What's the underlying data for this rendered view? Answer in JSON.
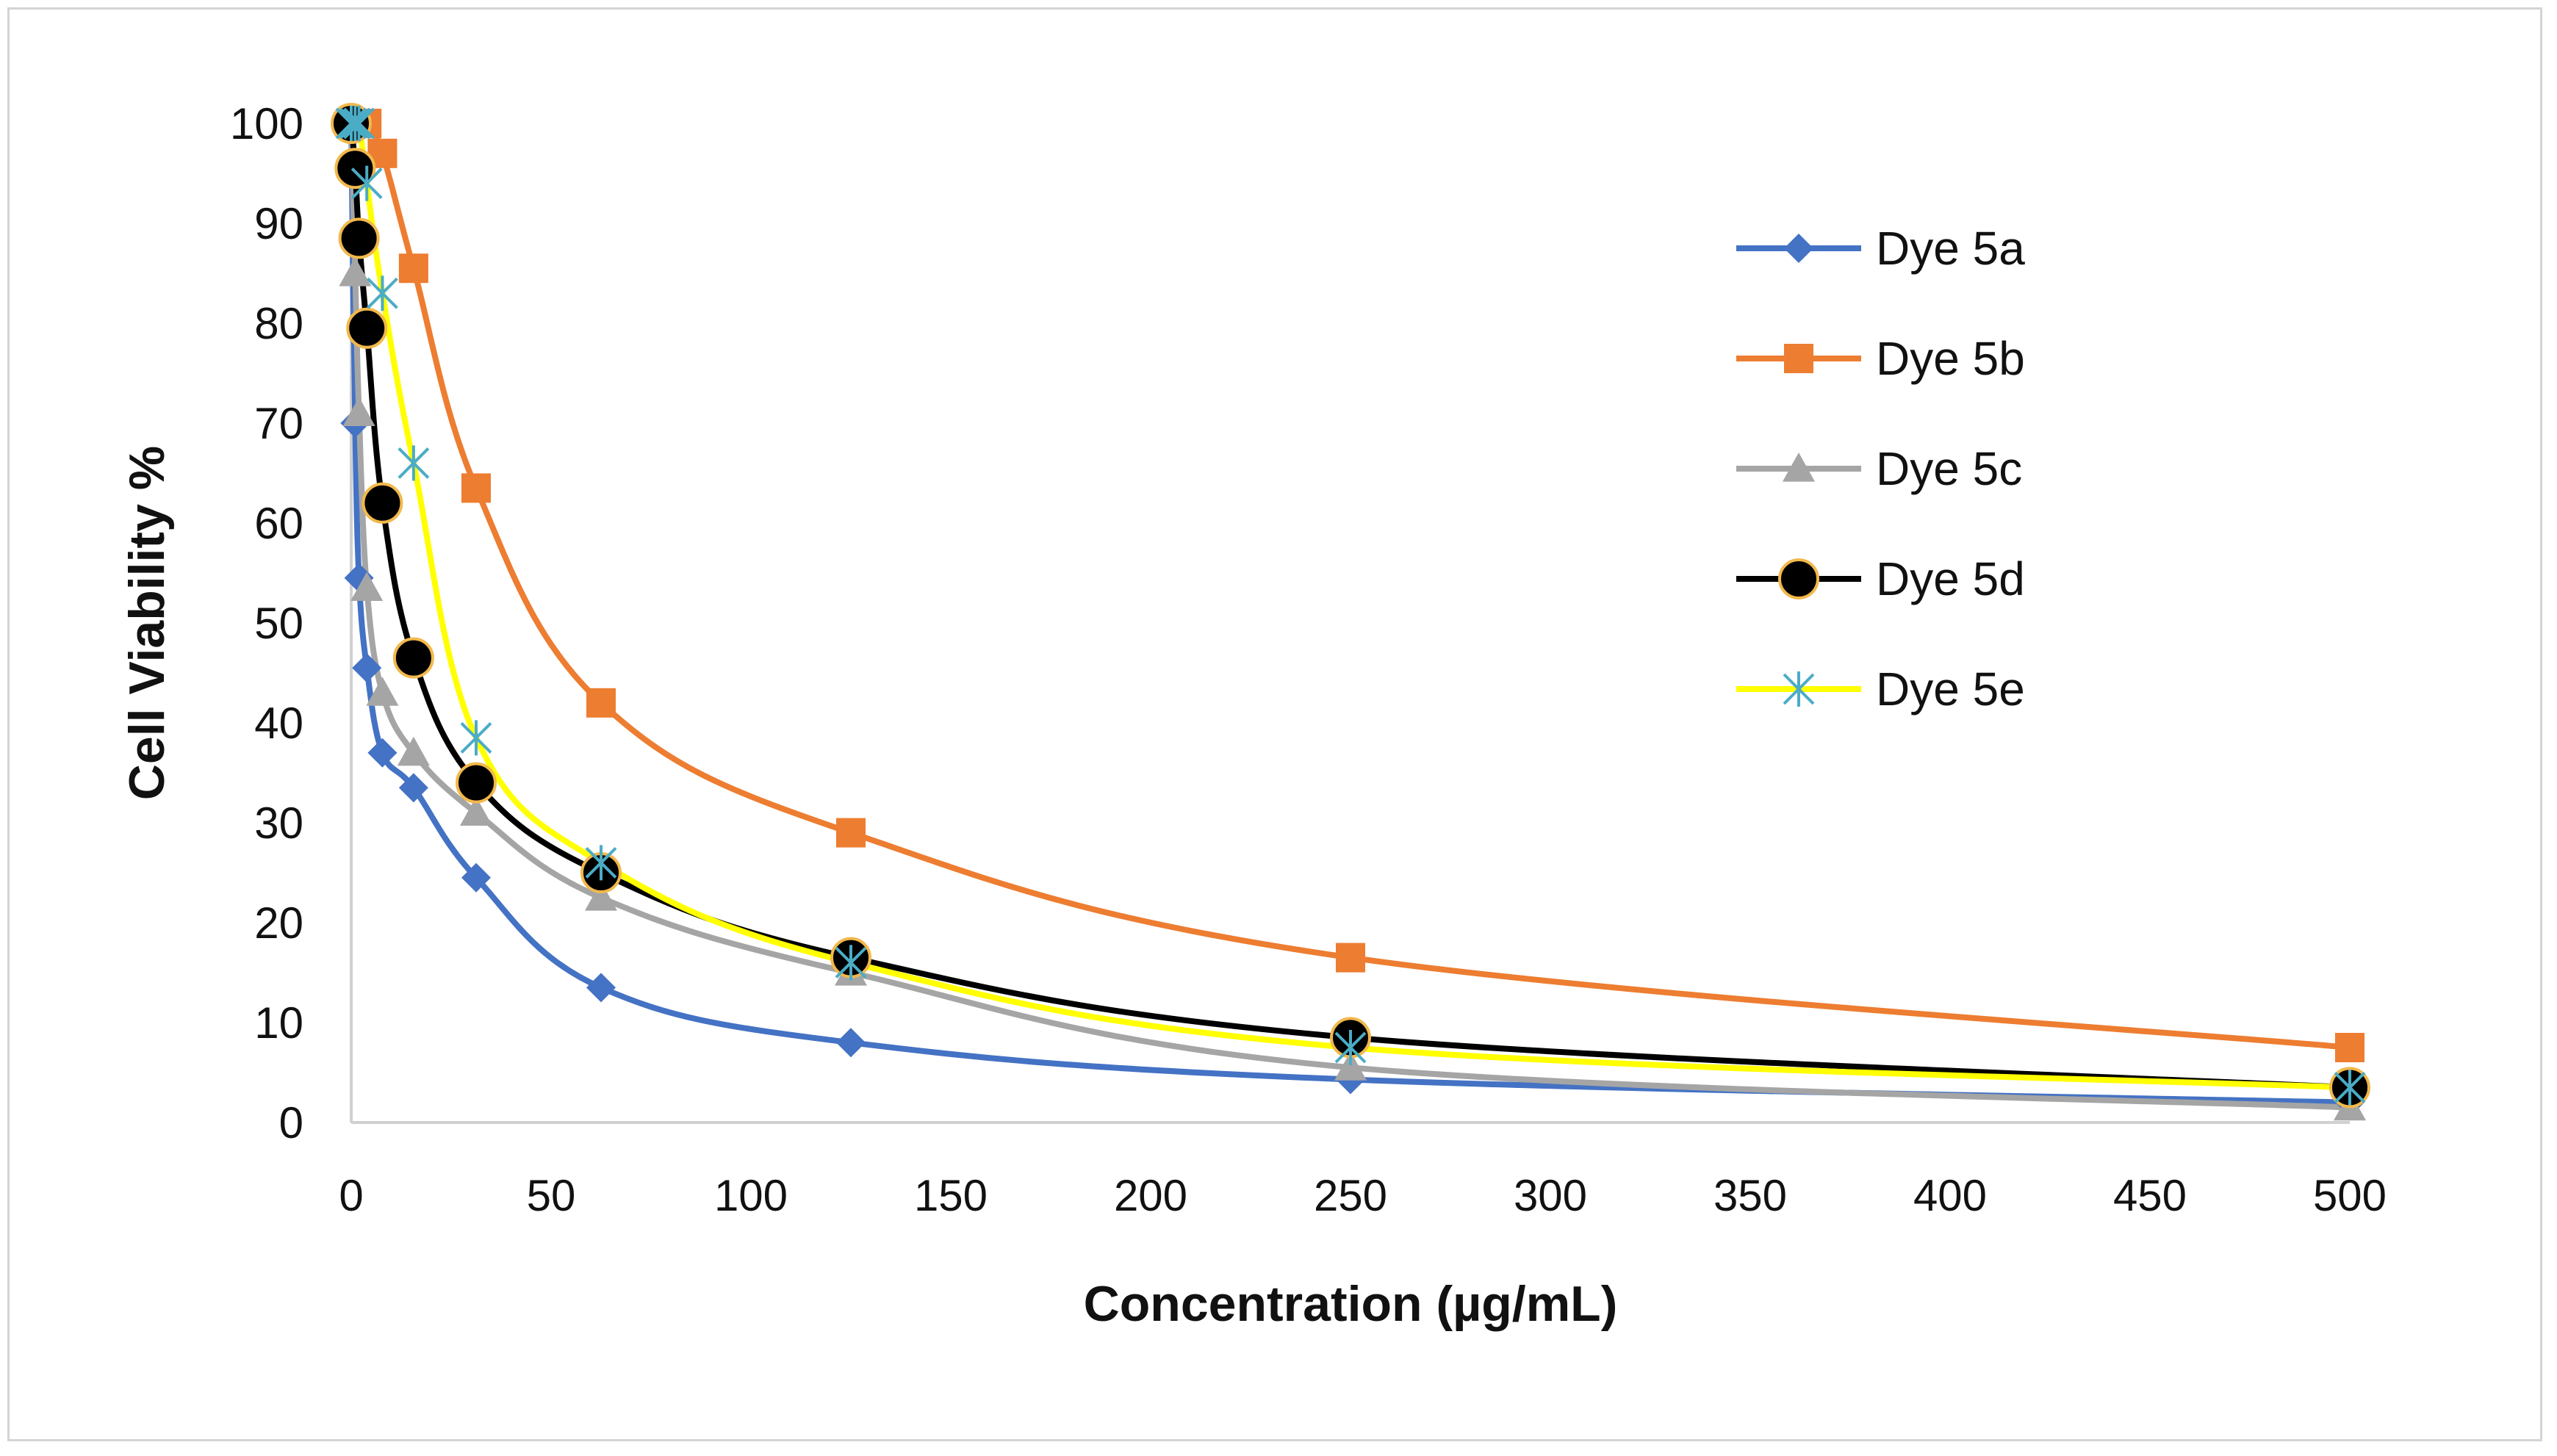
{
  "chart_data": {
    "type": "line",
    "title": "",
    "xlabel": "Concentration (µg/mL)",
    "ylabel": "Cell  Viability %",
    "xlim": [
      0,
      500
    ],
    "ylim": [
      0,
      100
    ],
    "x_ticks": [
      0,
      50,
      100,
      150,
      200,
      250,
      300,
      350,
      400,
      450,
      500
    ],
    "y_ticks": [
      0,
      10,
      20,
      30,
      40,
      50,
      60,
      70,
      80,
      90,
      100
    ],
    "x_tick_labels": [
      "0",
      "50",
      "100",
      "150",
      "200",
      "250",
      "300",
      "350",
      "400",
      "450",
      "500"
    ],
    "y_tick_labels": [
      "0",
      "10",
      "20",
      "30",
      "40",
      "50",
      "60",
      "70",
      "80",
      "90",
      "100"
    ],
    "grid": false,
    "smooth": true,
    "legend_position": "right",
    "x": [
      0,
      0.98,
      1.95,
      3.9,
      7.8,
      15.6,
      31.25,
      62.5,
      125,
      250,
      500
    ],
    "series": [
      {
        "name": "Dye 5a",
        "color": "#4472C4",
        "marker": "diamond",
        "values": [
          100,
          70,
          54.5,
          45.5,
          37,
          33.5,
          24.5,
          13.5,
          8,
          4.3,
          2
        ]
      },
      {
        "name": "Dye 5b",
        "color": "#ED7D31",
        "marker": "square",
        "values": [
          100,
          100,
          100,
          100,
          97,
          85.5,
          63.5,
          42,
          29,
          16.5,
          7.5
        ]
      },
      {
        "name": "Dye 5c",
        "color": "#A5A5A5",
        "marker": "triangle",
        "values": [
          100,
          85,
          71,
          53.5,
          43,
          37,
          31,
          22.5,
          15,
          5.5,
          1.5
        ]
      },
      {
        "name": "Dye 5d",
        "color": "#000000",
        "marker": "circle",
        "values": [
          100,
          95.5,
          88.5,
          79.5,
          62,
          46.5,
          34,
          25,
          16.5,
          8.5,
          3.5
        ]
      },
      {
        "name": "Dye 5e",
        "color": "#FFFF00",
        "marker": "star",
        "values": [
          100,
          100,
          100,
          94,
          83,
          66,
          38.5,
          26,
          16,
          7.5,
          3.5
        ]
      }
    ]
  }
}
